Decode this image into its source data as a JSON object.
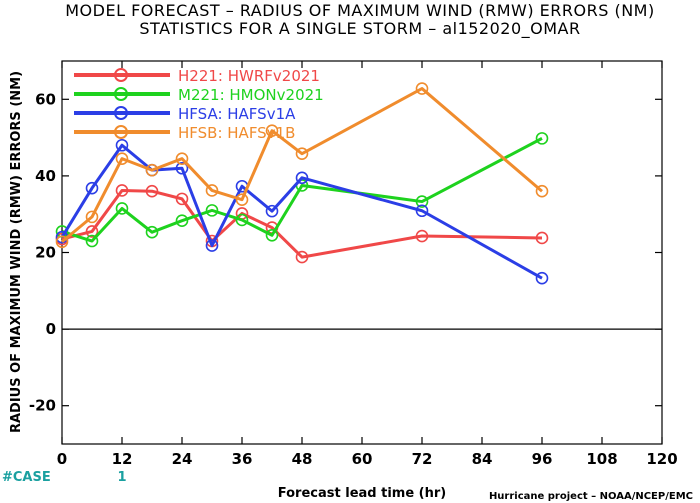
{
  "chart_data": {
    "type": "line",
    "title": "MODEL FORECAST – RADIUS OF MAXIMUM WIND (RMW) ERRORS (NM)",
    "subtitle": "STATISTICS FOR A SINGLE STORM – al152020_OMAR",
    "xlabel": "Forecast lead time (hr)",
    "ylabel": "RADIUS OF MAXIMUM WIND (RMW) ERRORS (NM)",
    "xlim": [
      0,
      120
    ],
    "ylim": [
      -30,
      70
    ],
    "xticks": [
      0,
      12,
      24,
      36,
      48,
      60,
      72,
      84,
      96,
      108,
      120
    ],
    "yticks": [
      -20,
      0,
      20,
      40,
      60
    ],
    "zero_line": true,
    "grid": false,
    "legend_position": "top-left",
    "series": [
      {
        "name": "H221: HWRFv2021",
        "color": "#f04848",
        "x": [
          0,
          6,
          12,
          18,
          24,
          30,
          36,
          42,
          48,
          72,
          96
        ],
        "y": [
          23.5,
          25.5,
          36.2,
          36.0,
          34.0,
          23.0,
          30.2,
          26.5,
          18.8,
          24.3,
          23.8
        ]
      },
      {
        "name": "M221: HMONv2021",
        "color": "#1ed21e",
        "x": [
          0,
          6,
          12,
          18,
          24,
          30,
          36,
          42,
          48,
          72,
          96
        ],
        "y": [
          25.5,
          23.0,
          31.5,
          25.3,
          28.3,
          31.0,
          28.5,
          24.5,
          37.5,
          33.3,
          49.8
        ]
      },
      {
        "name": "HFSA: HAFSv1A",
        "color": "#2b3ee6",
        "x": [
          0,
          6,
          12,
          18,
          24,
          30,
          36,
          42,
          48,
          72,
          96
        ],
        "y": [
          24.0,
          36.8,
          48.0,
          41.5,
          42.0,
          21.8,
          37.3,
          30.8,
          39.5,
          30.9,
          13.3
        ]
      },
      {
        "name": "HFSB: HAFSv1B",
        "color": "#f08c2d",
        "x": [
          0,
          6,
          12,
          18,
          24,
          30,
          36,
          42,
          48,
          72,
          96
        ],
        "y": [
          22.8,
          29.3,
          44.5,
          41.5,
          44.5,
          36.2,
          33.8,
          51.8,
          45.8,
          62.8,
          36.0
        ]
      }
    ]
  },
  "footer": {
    "case_label": "#CASE",
    "case_counts": [
      {
        "x": 12,
        "label": "1"
      }
    ],
    "credit": "Hurricane project – NOAA/NCEP/EMC"
  }
}
